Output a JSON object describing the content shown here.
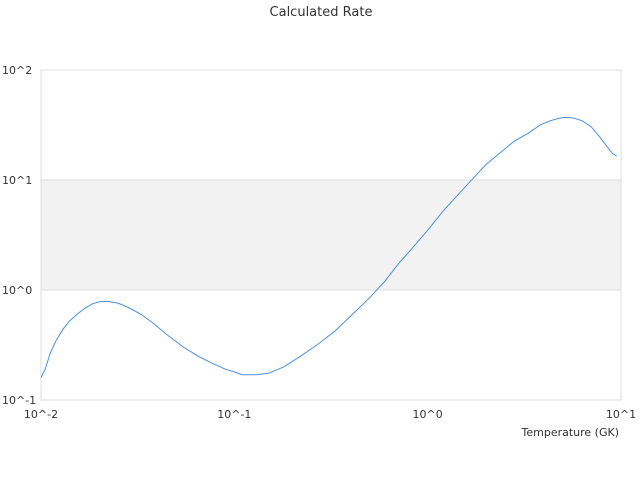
{
  "chart_data": {
    "type": "line",
    "title": "Calculated Rate",
    "xlabel": "Temperature (GK)",
    "ylabel": "",
    "x_scale": "log",
    "y_scale": "log",
    "xlim": [
      0.01,
      10
    ],
    "ylim": [
      0.1,
      100
    ],
    "grid": "horizontal",
    "legend": "none",
    "x_tick_labels": [
      "10^-2",
      "10^-1",
      "10^0",
      "10^1"
    ],
    "y_tick_labels": [
      "10^-1",
      "10^0",
      "10^1",
      "10^2"
    ],
    "highlight_band": [
      1,
      10
    ],
    "series": [
      {
        "color": "#4a90d9",
        "x": [
          0.01,
          0.0105,
          0.0112,
          0.012,
          0.013,
          0.014,
          0.0155,
          0.017,
          0.0185,
          0.02,
          0.022,
          0.025,
          0.028,
          0.033,
          0.038,
          0.045,
          0.055,
          0.065,
          0.075,
          0.09,
          0.1,
          0.11,
          0.13,
          0.15,
          0.18,
          0.22,
          0.27,
          0.33,
          0.4,
          0.5,
          0.6,
          0.7,
          0.85,
          1.0,
          1.2,
          1.5,
          1.8,
          2.0,
          2.4,
          2.8,
          3.3,
          3.8,
          4.3,
          4.8,
          5.2,
          5.7,
          6.3,
          7.0,
          7.7,
          8.4,
          9.0,
          9.5
        ],
        "values": [
          0.16,
          0.19,
          0.27,
          0.35,
          0.44,
          0.52,
          0.61,
          0.69,
          0.75,
          0.78,
          0.79,
          0.76,
          0.7,
          0.6,
          0.5,
          0.39,
          0.3,
          0.25,
          0.22,
          0.19,
          0.18,
          0.17,
          0.17,
          0.175,
          0.2,
          0.25,
          0.32,
          0.42,
          0.58,
          0.85,
          1.2,
          1.7,
          2.5,
          3.5,
          5.2,
          8.0,
          11.3,
          13.8,
          18.0,
          22.5,
          26.5,
          31.5,
          34.5,
          36.5,
          37.2,
          36.5,
          34.5,
          30.5,
          25.0,
          20.5,
          17.5,
          16.5
        ]
      }
    ]
  }
}
